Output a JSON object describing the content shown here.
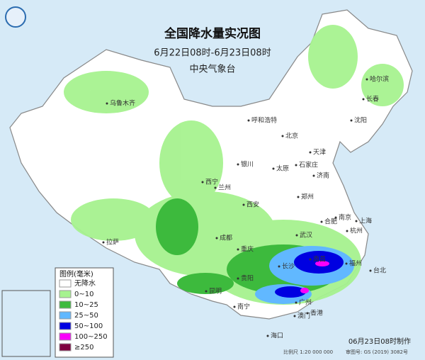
{
  "header": {
    "title": "全国降水量实况图",
    "period": "6月22日08时-6月23日08时",
    "agency": "中央气象台"
  },
  "legend": {
    "title": "图例(毫米)",
    "items": [
      {
        "label": "无降水",
        "color": "#ffffff"
      },
      {
        "label": "0~10",
        "color": "#a6f28f"
      },
      {
        "label": "10~25",
        "color": "#3dba3d"
      },
      {
        "label": "25~50",
        "color": "#61b8ff"
      },
      {
        "label": "50~100",
        "color": "#0000e1"
      },
      {
        "label": "100~250",
        "color": "#fa00fa"
      },
      {
        "label": "≥250",
        "color": "#800040"
      }
    ]
  },
  "cities": [
    "哈尔滨",
    "长春",
    "沈阳",
    "乌鲁木齐",
    "呼和浩特",
    "北京",
    "天津",
    "石家庄",
    "太原",
    "济南",
    "银川",
    "西宁",
    "兰州",
    "郑州",
    "西安",
    "南京",
    "合肥",
    "上海",
    "杭州",
    "武汉",
    "成都",
    "重庆",
    "拉萨",
    "贵阳",
    "长沙",
    "南昌",
    "福州",
    "台北",
    "昆明",
    "南宁",
    "广州",
    "澳门",
    "香港",
    "海口"
  ],
  "footer": {
    "made": "06月23日08时制作",
    "scale": "比例尺 1:20 000 000",
    "approval": "审图号: GS (2019) 3082号"
  }
}
